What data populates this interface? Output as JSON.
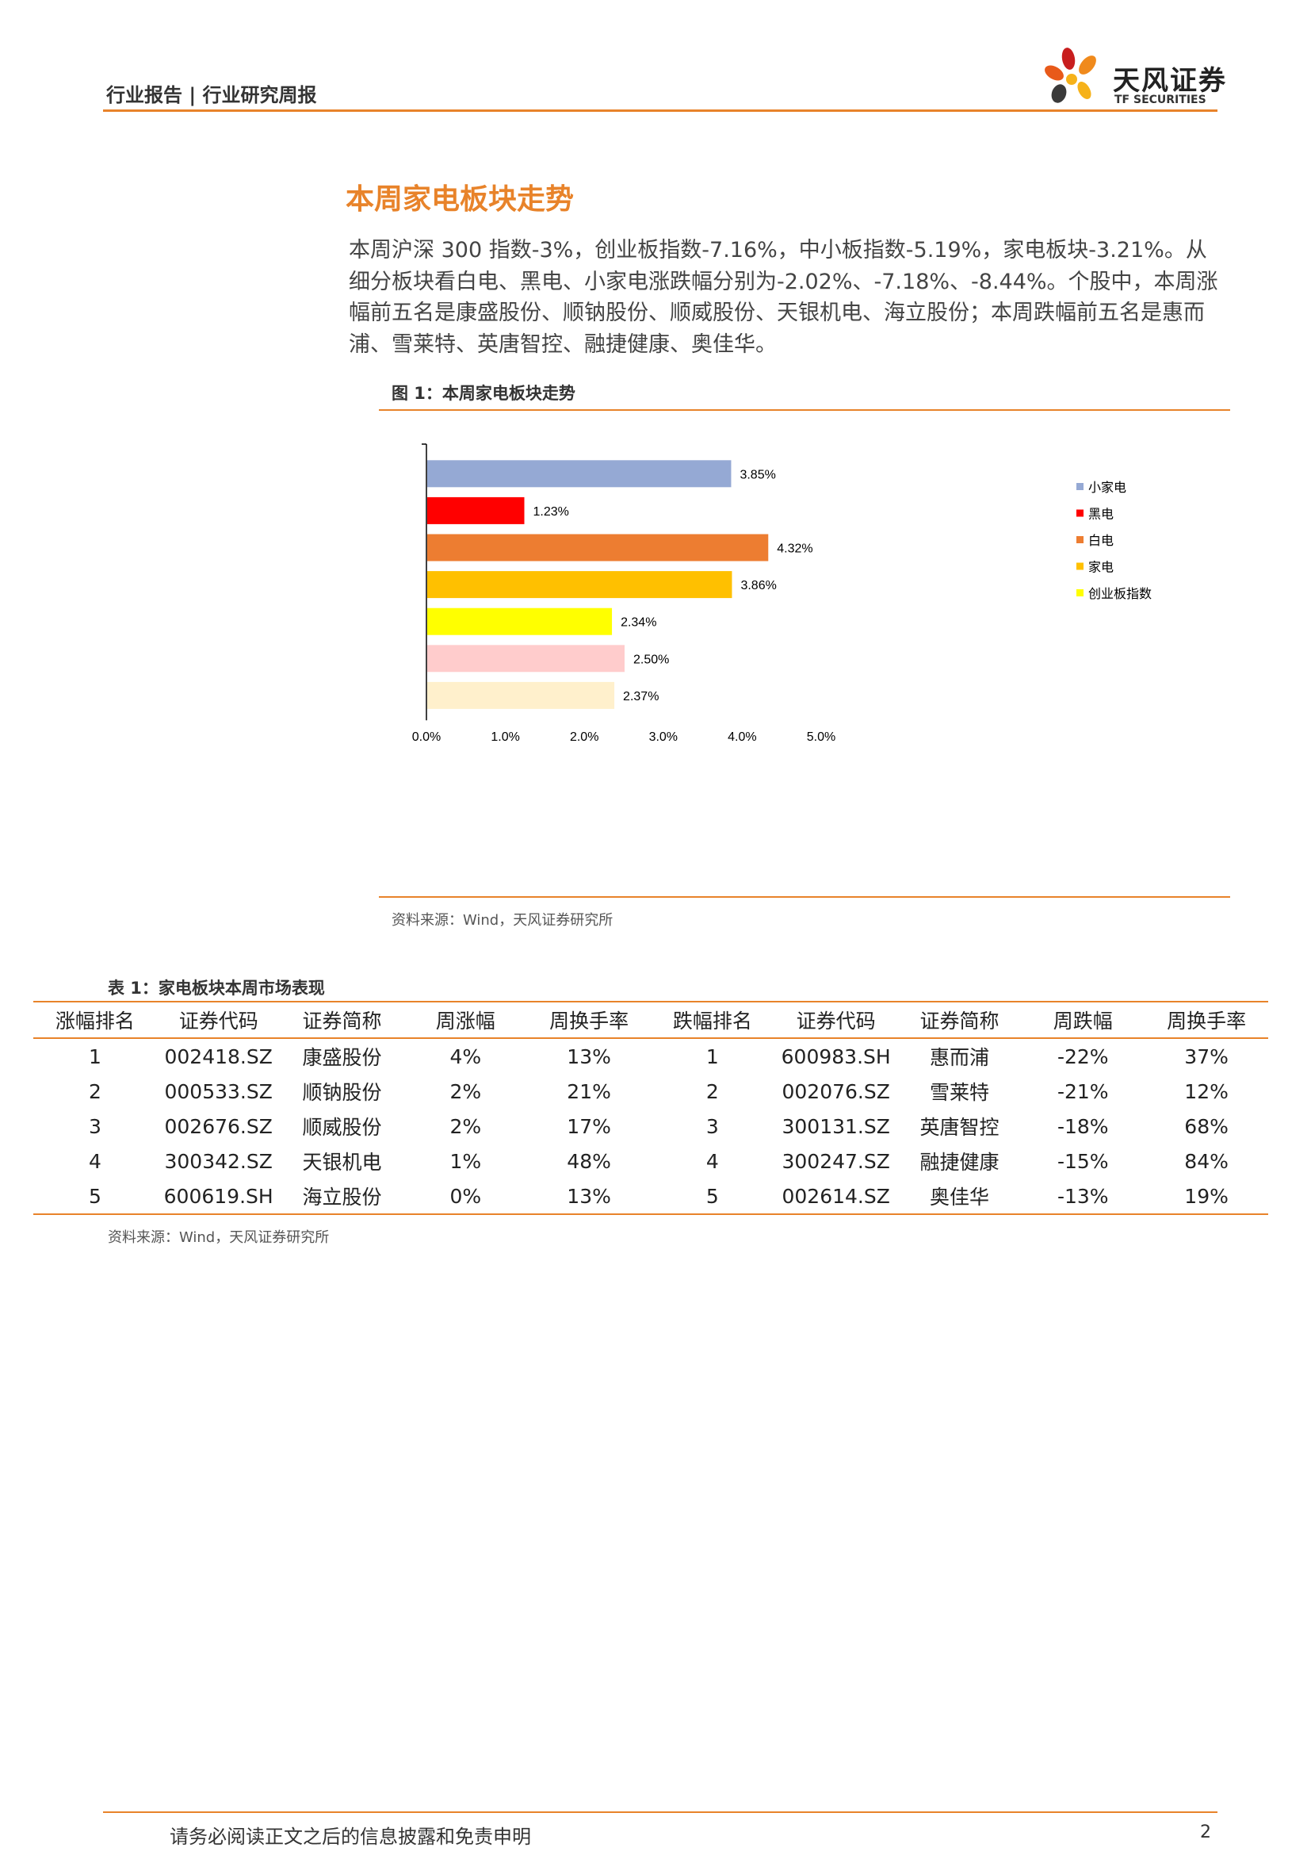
{
  "header": {
    "title": "行业报告 | 行业研究周报",
    "logo_cn": "天风证券",
    "logo_en": "TF SECURITIES"
  },
  "section": {
    "title": "本周家电板块走势",
    "paragraph": "本周沪深 300 指数-3%，创业板指数-7.16%，中小板指数-5.19%，家电板块-3.21%。从细分板块看白电、黑电、小家电涨跌幅分别为-2.02%、-7.18%、-8.44%。个股中，本周涨幅前五名是康盛股份、顺钠股份、顺威股份、天银机电、海立股份；本周跌幅前五名是惠而浦、雪莱特、英唐智控、融捷健康、奥佳华。"
  },
  "figure": {
    "title": "图 1：本周家电板块走势",
    "source": "资料来源：Wind，天风证券研究所"
  },
  "chart_data": {
    "type": "bar",
    "orientation": "horizontal",
    "values": [
      3.85,
      1.23,
      4.32,
      3.86,
      2.34,
      2.5,
      2.37
    ],
    "labels": [
      "3.85%",
      "1.23%",
      "4.32%",
      "3.86%",
      "2.34%",
      "2.50%",
      "2.37%"
    ],
    "colors": [
      "#95a9d4",
      "#ff0000",
      "#ed7d31",
      "#ffc000",
      "#ffff00",
      "#ffcccc",
      "#fff0cc"
    ],
    "xlim": [
      0,
      5
    ],
    "xticks": [
      "0.0%",
      "1.0%",
      "2.0%",
      "3.0%",
      "4.0%",
      "5.0%"
    ],
    "legend": [
      {
        "name": "小家电",
        "color": "#95a9d4"
      },
      {
        "name": "黑电",
        "color": "#ff0000"
      },
      {
        "name": "白电",
        "color": "#ed7d31"
      },
      {
        "name": "家电",
        "color": "#ffc000"
      },
      {
        "name": "创业板指数",
        "color": "#ffff00"
      }
    ],
    "legend_position": "right",
    "grid": false
  },
  "table": {
    "title": "表 1：家电板块本周市场表现",
    "headers": [
      "涨幅排名",
      "证券代码",
      "证券简称",
      "周涨幅",
      "周换手率",
      "跌幅排名",
      "证券代码",
      "证券简称",
      "周跌幅",
      "周换手率"
    ],
    "rows": [
      [
        "1",
        "002418.SZ",
        "康盛股份",
        "4%",
        "13%",
        "1",
        "600983.SH",
        "惠而浦",
        "-22%",
        "37%"
      ],
      [
        "2",
        "000533.SZ",
        "顺钠股份",
        "2%",
        "21%",
        "2",
        "002076.SZ",
        "雪莱特",
        "-21%",
        "12%"
      ],
      [
        "3",
        "002676.SZ",
        "顺威股份",
        "2%",
        "17%",
        "3",
        "300131.SZ",
        "英唐智控",
        "-18%",
        "68%"
      ],
      [
        "4",
        "300342.SZ",
        "天银机电",
        "1%",
        "48%",
        "4",
        "300247.SZ",
        "融捷健康",
        "-15%",
        "84%"
      ],
      [
        "5",
        "600619.SH",
        "海立股份",
        "0%",
        "13%",
        "5",
        "002614.SZ",
        "奥佳华",
        "-13%",
        "19%"
      ]
    ],
    "source": "资料来源：Wind，天风证券研究所"
  },
  "footer": {
    "disclaimer": "请务必阅读正文之后的信息披露和免责申明",
    "page": "2"
  }
}
